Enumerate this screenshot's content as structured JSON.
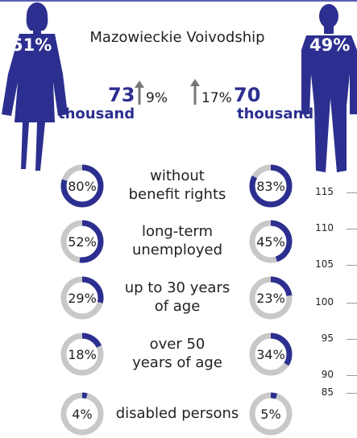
{
  "title": "Mazowieckie Voivodship",
  "women": {
    "share": "51%",
    "count": "73",
    "unit": "thousand",
    "change": "9%"
  },
  "men": {
    "share": "49%",
    "count": "70",
    "unit": "thousand",
    "change": "17%"
  },
  "colors": {
    "accent": "#2c2f8f",
    "ring_bg": "#c8c8c8",
    "silhouette": "#2c2f8f"
  },
  "icons": {
    "women": "woman-silhouette-icon",
    "men": "man-silhouette-icon",
    "change": "arrow-up-icon"
  },
  "chart_data": {
    "type": "donut-comparison",
    "categories": [
      {
        "lines": [
          "without",
          "benefit rights"
        ],
        "women": 80,
        "men": 83,
        "women_label": "80%",
        "men_label": "83%"
      },
      {
        "lines": [
          "long-term",
          "unemployed"
        ],
        "women": 52,
        "men": 45,
        "women_label": "52%",
        "men_label": "45%"
      },
      {
        "lines": [
          "up to 30 years",
          "of age"
        ],
        "women": 29,
        "men": 23,
        "women_label": "29%",
        "men_label": "23%"
      },
      {
        "lines": [
          "over 50",
          "years of age"
        ],
        "women": 18,
        "men": 34,
        "women_label": "18%",
        "men_label": "34%"
      },
      {
        "lines": [
          "disabled persons"
        ],
        "women": 4,
        "men": 5,
        "women_label": "4%",
        "men_label": "5%"
      }
    ]
  },
  "axis": {
    "ticks": [
      "115",
      "110",
      "105",
      "100",
      "95",
      "90",
      "85"
    ]
  }
}
